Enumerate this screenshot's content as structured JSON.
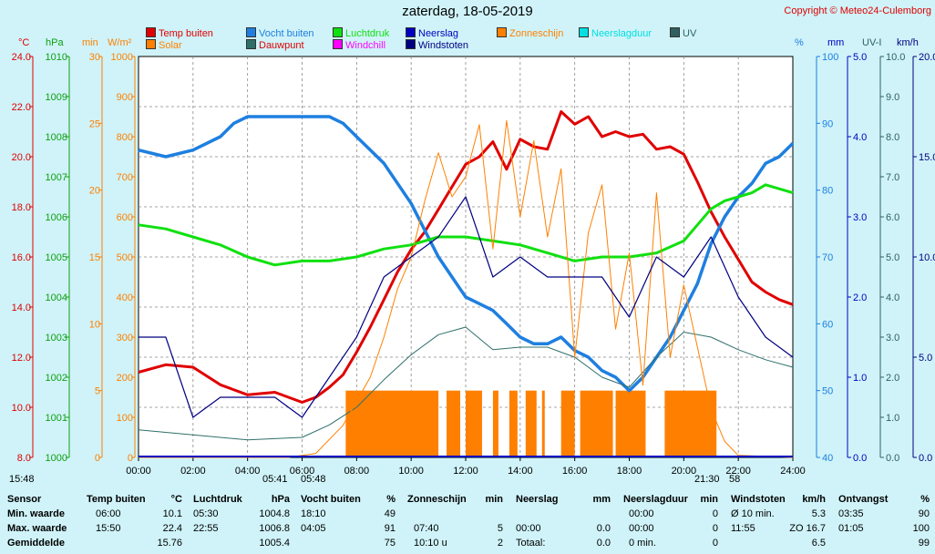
{
  "header": {
    "title": "zaterdag, 18-05-2019",
    "copyright": "Copyright © Meteo24-Culemborg"
  },
  "legend": [
    {
      "label": "Temp buiten",
      "color": "#e00000"
    },
    {
      "label": "Solar",
      "color": "#ff8000"
    },
    {
      "label": "Vocht buiten",
      "color": "#1e7fe0"
    },
    {
      "label": "Dauwpunt",
      "color": "#2f6f6a"
    },
    {
      "label": "Luchtdruk",
      "color": "#10e010"
    },
    {
      "label": "Windchill",
      "color": "#ff00ff"
    },
    {
      "label": "Neerslag",
      "color": "#0000c0"
    },
    {
      "label": "Windstoten",
      "color": "#000080"
    },
    {
      "label": "Zonneschijn",
      "color": "#ff8000"
    },
    {
      "label": "Neerslagduur",
      "color": "#00e0e0"
    },
    {
      "label": "UV",
      "color": "#306060"
    }
  ],
  "chart_data": {
    "type": "line",
    "title": "zaterdag, 18-05-2019",
    "x_ticks": [
      "00:00",
      "02:00",
      "04:00",
      "06:00",
      "08:00",
      "10:00",
      "12:00",
      "14:00",
      "16:00",
      "18:00",
      "20:00",
      "22:00",
      "24:00"
    ],
    "axes": {
      "temp": {
        "unit": "°C",
        "range": [
          8,
          24
        ],
        "ticks": [
          "24.0",
          "22.0",
          "20.0",
          "18.0",
          "16.0",
          "14.0",
          "12.0",
          "10.0",
          "8.0"
        ]
      },
      "pressure": {
        "unit": "hPa",
        "range": [
          1000,
          1010
        ],
        "ticks": [
          "1010",
          "1009",
          "1008",
          "1007",
          "1006",
          "1005",
          "1004",
          "1003",
          "1002",
          "1001",
          "1000"
        ]
      },
      "minutes": {
        "unit": "min",
        "range": [
          0,
          30
        ],
        "ticks": [
          "30",
          "25",
          "20",
          "15",
          "10",
          "5",
          "0"
        ]
      },
      "solar": {
        "unit": "W/m²",
        "range": [
          0,
          1000
        ],
        "ticks": [
          "1000",
          "900",
          "800",
          "700",
          "600",
          "500",
          "400",
          "300",
          "200",
          "100",
          "0"
        ]
      },
      "humidity": {
        "unit": "%",
        "range": [
          40,
          100
        ],
        "ticks": [
          "100",
          "90",
          "80",
          "70",
          "60",
          "50",
          "40"
        ]
      },
      "rain": {
        "unit": "mm",
        "range": [
          0,
          5
        ],
        "ticks": [
          "5.0",
          "4.0",
          "3.0",
          "2.0",
          "1.0",
          "0.0"
        ]
      },
      "uv": {
        "unit": "UV-I",
        "range": [
          0,
          10
        ],
        "ticks": [
          "10.0",
          "9.0",
          "8.0",
          "7.0",
          "6.0",
          "5.0",
          "4.0",
          "3.0",
          "2.0",
          "1.0",
          "0.0"
        ]
      },
      "wind": {
        "unit": "km/h",
        "range": [
          0,
          20
        ],
        "ticks": [
          "20.0",
          "15.0",
          "10.0",
          "5.0",
          "0.0"
        ]
      }
    },
    "series": [
      {
        "name": "Temp buiten",
        "axis": "temp",
        "x": [
          0,
          1,
          2,
          3,
          4,
          5,
          6,
          6.5,
          7,
          7.5,
          8,
          8.5,
          9,
          9.5,
          10,
          10.5,
          11,
          11.5,
          12,
          12.5,
          13,
          13.5,
          14,
          14.5,
          15,
          15.5,
          16,
          16.5,
          17,
          17.5,
          18,
          18.5,
          19,
          19.5,
          20,
          20.5,
          21,
          21.5,
          22,
          22.5,
          23,
          23.5,
          24
        ],
        "y": [
          11.4,
          11.7,
          11.6,
          10.9,
          10.5,
          10.6,
          10.2,
          10.4,
          10.8,
          11.3,
          12.2,
          13.2,
          14.3,
          15.4,
          16.3,
          17.0,
          17.9,
          18.8,
          19.7,
          20.0,
          20.6,
          19.5,
          20.7,
          20.4,
          20.3,
          21.8,
          21.3,
          21.6,
          20.8,
          21.0,
          20.8,
          20.9,
          20.3,
          20.4,
          20.1,
          19.0,
          17.8,
          16.8,
          15.9,
          15.0,
          14.6,
          14.3,
          14.1
        ]
      },
      {
        "name": "Vocht buiten",
        "axis": "humidity",
        "x": [
          0,
          1,
          2,
          3,
          3.5,
          4,
          5,
          6,
          7,
          7.5,
          8,
          9,
          10,
          10.5,
          11,
          11.5,
          12,
          12.5,
          13,
          13.5,
          14,
          14.5,
          15,
          15.5,
          16,
          16.5,
          17,
          17.5,
          18,
          18.5,
          19,
          19.5,
          20,
          20.5,
          21,
          21.5,
          22,
          22.5,
          23,
          23.5,
          24
        ],
        "y": [
          86,
          85,
          86,
          88,
          90,
          91,
          91,
          91,
          91,
          90,
          88,
          84,
          78,
          74,
          70,
          67,
          64,
          63,
          62,
          60,
          58,
          57,
          57,
          58,
          56,
          55,
          53,
          52,
          50,
          52,
          55,
          58,
          62,
          66,
          72,
          76,
          79,
          81,
          84,
          85,
          87
        ]
      },
      {
        "name": "Luchtdruk",
        "axis": "pressure",
        "x": [
          0,
          1,
          2,
          3,
          4,
          5,
          6,
          7,
          8,
          9,
          10,
          11,
          12,
          13,
          14,
          15,
          16,
          17,
          18,
          19,
          20,
          20.5,
          21,
          21.5,
          22,
          22.5,
          23,
          23.5,
          24
        ],
        "y": [
          1005.8,
          1005.7,
          1005.5,
          1005.3,
          1005.0,
          1004.8,
          1004.9,
          1004.9,
          1005.0,
          1005.2,
          1005.3,
          1005.5,
          1005.5,
          1005.4,
          1005.3,
          1005.1,
          1004.9,
          1005.0,
          1005.0,
          1005.1,
          1005.4,
          1005.8,
          1006.2,
          1006.4,
          1006.5,
          1006.6,
          1006.8,
          1006.7,
          1006.6
        ]
      },
      {
        "name": "Dauwpunt",
        "axis": "temp",
        "x": [
          0,
          2,
          4,
          6,
          7,
          8,
          9,
          10,
          11,
          12,
          13,
          14,
          15,
          16,
          17,
          18,
          19,
          20,
          21,
          22,
          23,
          24
        ],
        "y": [
          9.1,
          8.9,
          8.7,
          8.8,
          9.3,
          10.0,
          11.1,
          12.1,
          12.9,
          13.2,
          12.3,
          12.4,
          12.4,
          12.0,
          11.2,
          10.8,
          12.0,
          13.0,
          12.8,
          12.3,
          11.9,
          11.6
        ]
      },
      {
        "name": "Solar",
        "axis": "solar",
        "x": [
          0,
          5.5,
          6.5,
          7.5,
          8.5,
          9,
          9.5,
          10,
          10.5,
          11,
          11.5,
          12,
          12.5,
          13,
          13.5,
          14,
          14.5,
          15,
          15.5,
          16,
          16.5,
          17,
          17.5,
          18,
          18.5,
          19,
          19.5,
          20,
          21,
          21.5,
          22,
          24
        ],
        "y": [
          0,
          0,
          10,
          80,
          200,
          300,
          420,
          500,
          640,
          760,
          650,
          700,
          830,
          520,
          840,
          600,
          790,
          550,
          720,
          250,
          560,
          680,
          320,
          510,
          180,
          660,
          250,
          430,
          120,
          40,
          5,
          0
        ]
      },
      {
        "name": "Windstoten",
        "axis": "wind",
        "x": [
          0,
          1,
          2,
          3,
          4,
          5,
          6,
          7,
          8,
          9,
          10,
          11,
          12,
          13,
          14,
          15,
          16,
          17,
          18,
          19,
          20,
          21,
          22,
          23,
          24
        ],
        "y": [
          6,
          6,
          2,
          3,
          3,
          3,
          2,
          4,
          6,
          9,
          10,
          11,
          13,
          9,
          10,
          9,
          9,
          9,
          7,
          10,
          9,
          11,
          8,
          6,
          5
        ]
      }
    ],
    "bars": [
      {
        "name": "Zonneschijn",
        "axis": "minutes",
        "value": 5,
        "intervals": [
          [
            7.6,
            11.0
          ],
          [
            11.3,
            11.8
          ],
          [
            12.0,
            12.6
          ],
          [
            13.0,
            13.2
          ],
          [
            13.6,
            13.9
          ],
          [
            14.2,
            14.6
          ],
          [
            14.8,
            14.9
          ],
          [
            15.5,
            16.0
          ],
          [
            16.2,
            17.4
          ],
          [
            17.5,
            18.6
          ],
          [
            19.3,
            21.2
          ]
        ]
      }
    ]
  },
  "time_markers": {
    "start": "15:48",
    "sunrise": "05:41",
    "sunrise2": "05:48",
    "sunset": "21:30",
    "sunset2": "58"
  },
  "stats": {
    "columns": [
      {
        "header": "Sensor",
        "unit": ""
      },
      {
        "header": "Temp buiten",
        "unit": "°C"
      },
      {
        "header": "Luchtdruk",
        "unit": "hPa"
      },
      {
        "header": "Vocht buiten",
        "unit": "%"
      },
      {
        "header": "Zonneschijn",
        "unit": "min"
      },
      {
        "header": "Neerslag",
        "unit": "mm"
      },
      {
        "header": "Neerslagduur",
        "unit": "min"
      },
      {
        "header": "Windstoten",
        "unit": "km/h"
      },
      {
        "header": "Ontvangst",
        "unit": "%"
      }
    ],
    "rows": [
      {
        "label": "Min. waarde",
        "cells": [
          [
            "06:00",
            "10.1"
          ],
          [
            "05:30",
            "1004.8"
          ],
          [
            "18:10",
            "49"
          ],
          [
            "",
            ""
          ],
          [
            "",
            ""
          ],
          [
            "00:00",
            "0"
          ],
          [
            "Ø 10 min.",
            "5.3"
          ],
          [
            "03:35",
            "90"
          ]
        ]
      },
      {
        "label": "Max. waarde",
        "cells": [
          [
            "15:50",
            "22.4"
          ],
          [
            "22:55",
            "1006.8"
          ],
          [
            "04:05",
            "91"
          ],
          [
            "07:40",
            "5"
          ],
          [
            "00:00",
            "0.0"
          ],
          [
            "00:00",
            "0"
          ],
          [
            "11:55",
            "ZO 16.7"
          ],
          [
            "01:05",
            "100"
          ]
        ]
      },
      {
        "label": "Gemiddelde",
        "cells": [
          [
            "",
            "15.76"
          ],
          [
            "",
            "1005.4"
          ],
          [
            "",
            "75"
          ],
          [
            "10:10 u",
            "2"
          ],
          [
            "Totaal:",
            "0.0"
          ],
          [
            "0 min.",
            "0"
          ],
          [
            "",
            "6.5"
          ],
          [
            "",
            "99"
          ]
        ]
      }
    ]
  }
}
